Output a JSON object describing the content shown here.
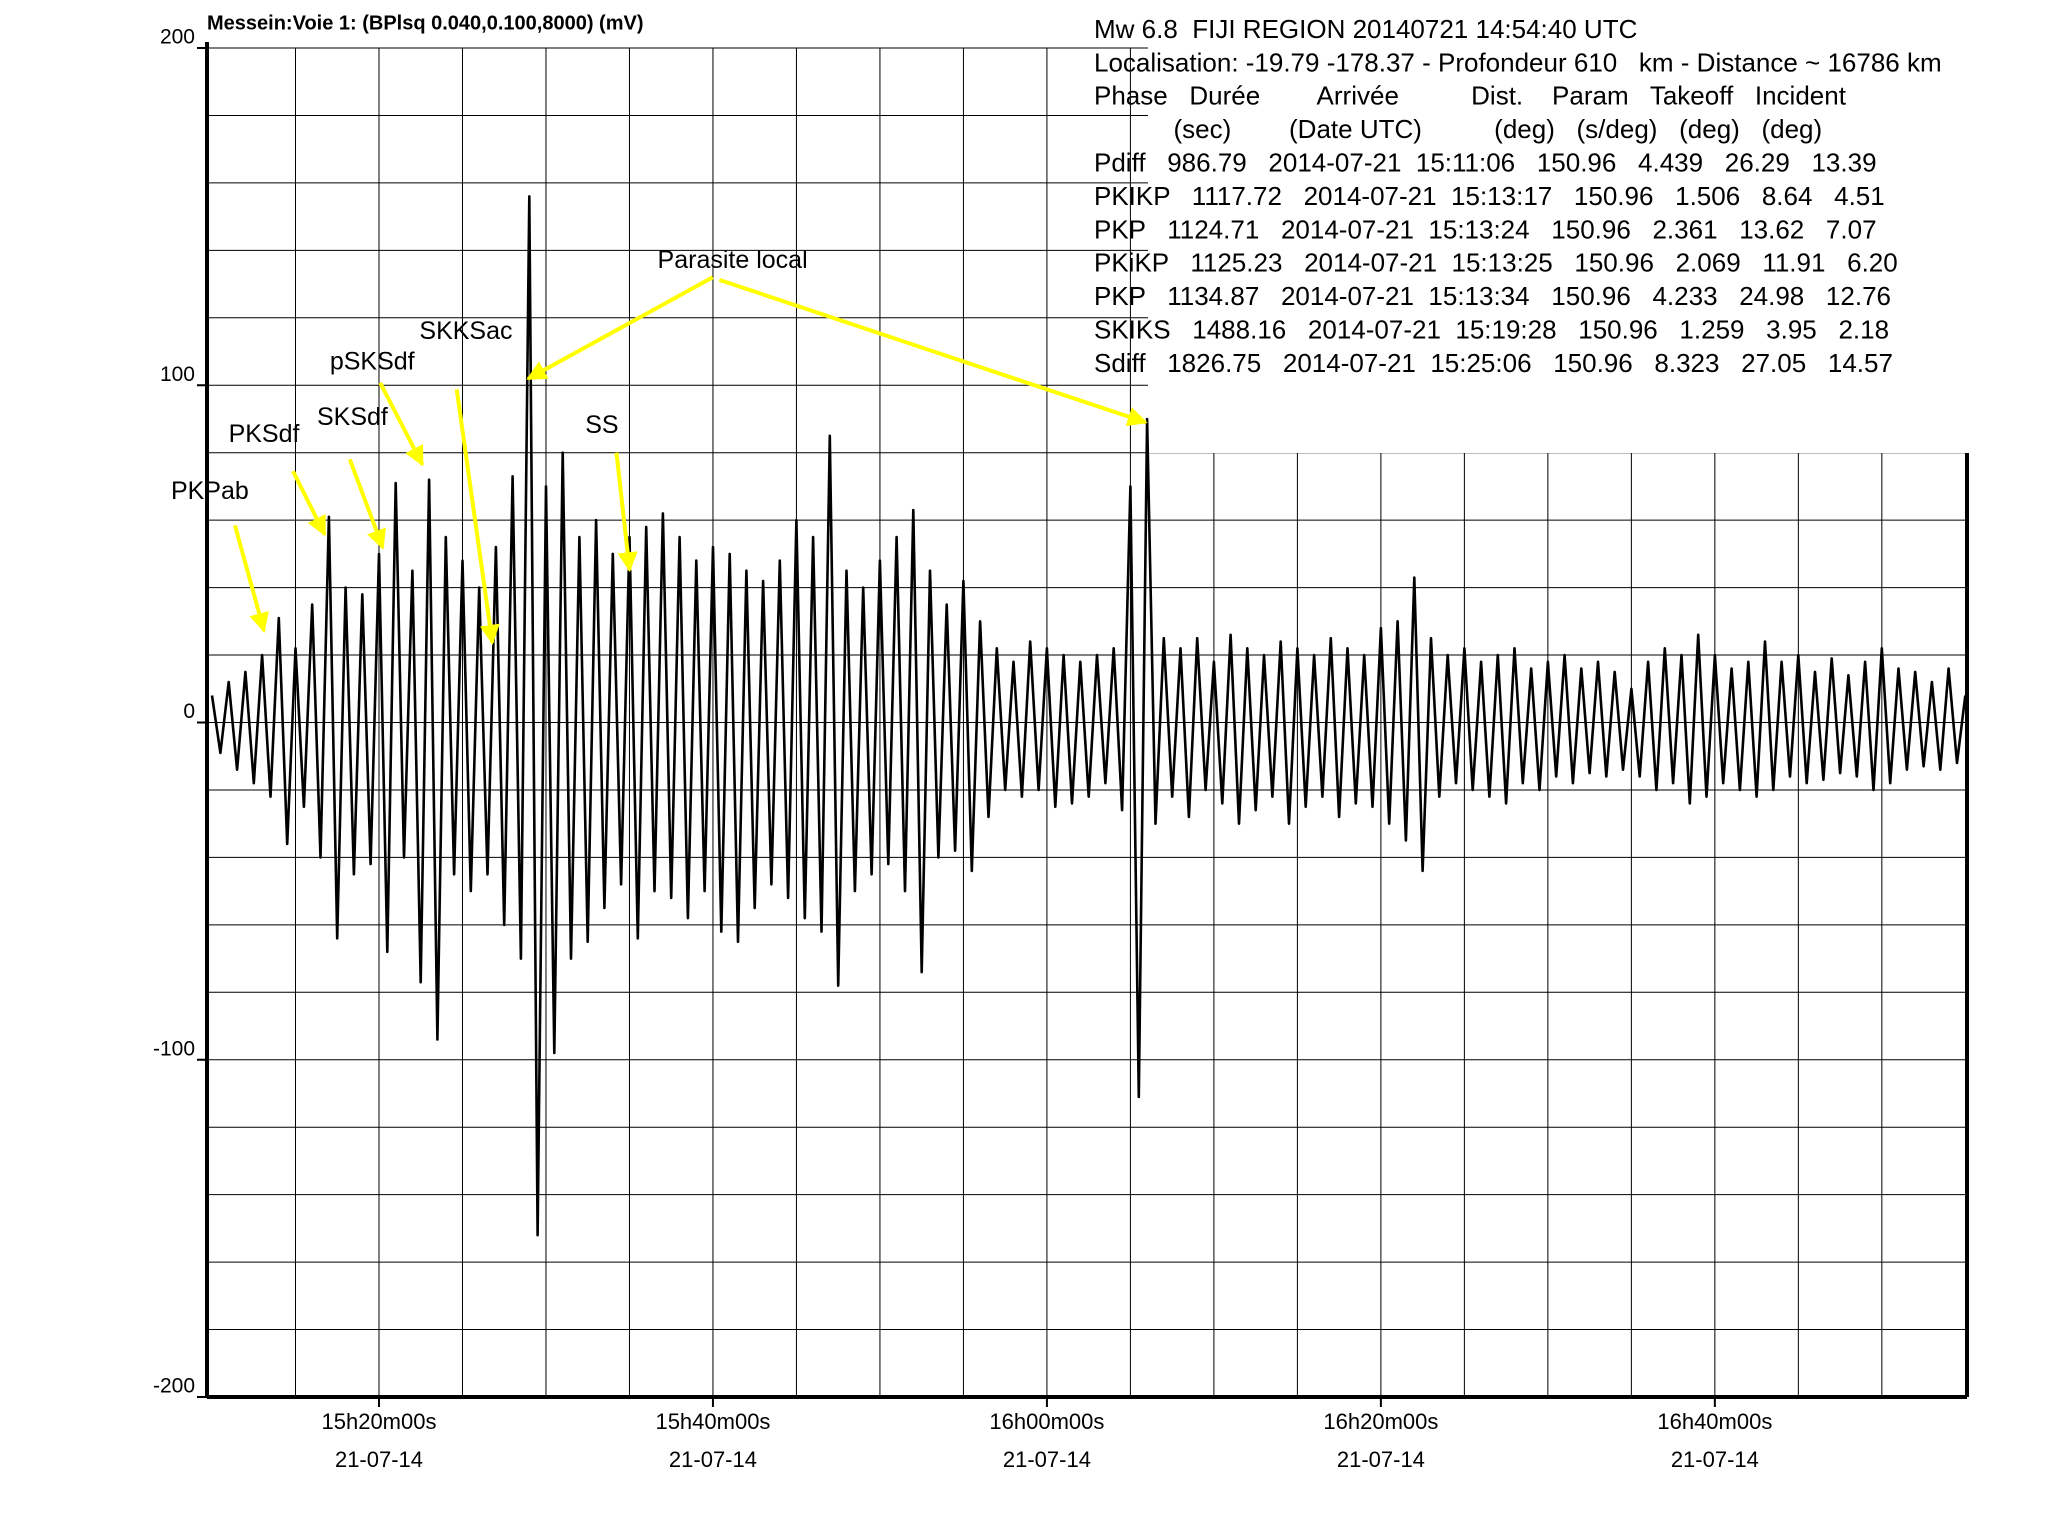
{
  "chart_data": {
    "type": "line",
    "title": "Messein:Voie 1: (BPlsq 0.040,0.100,8000) (mV)",
    "info": [
      "Mw 6.8  FIJI REGION 20140721 14:54:40 UTC",
      "Localisation: -19.79 -178.37 - Profondeur 610   km - Distance ~ 16786 km",
      "Phase   Durée        Arrivée          Dist.    Param   Takeoff   Incident",
      "           (sec)        (Date UTC)          (deg)   (s/deg)   (deg)   (deg)",
      "Pdiff   986.79   2014-07-21  15:11:06   150.96   4.439   26.29   13.39",
      "PKIKP   1117.72   2014-07-21  15:13:17   150.96   1.506   8.64   4.51",
      "PKP   1124.71   2014-07-21  15:13:24   150.96   2.361   13.62   7.07",
      "PKiKP   1125.23   2014-07-21  15:13:25   150.96   2.069   11.91   6.20",
      "PKP   1134.87   2014-07-21  15:13:34   150.96   4.233   24.98   12.76",
      "SKIKS   1488.16   2014-07-21  15:19:28   150.96   1.259   3.95   2.18",
      "Sdiff   1826.75   2014-07-21  15:25:06   150.96   8.323   27.05   14.57"
    ],
    "annotations": [
      "PKPab",
      "PKSdf",
      "SKSdf",
      "pSKSdf",
      "SKKSac",
      "SS",
      "Parasite local"
    ],
    "color": "#000000",
    "annotation_color": "#ffff00",
    "grid": true,
    "xlim": [
      9.7,
      115.1
    ],
    "xticks": [
      {
        "value": 20,
        "label": "15h20m00s",
        "date": "21-07-14"
      },
      {
        "value": 40,
        "label": "15h40m00s",
        "date": "21-07-14"
      },
      {
        "value": 60,
        "label": "16h00m00s",
        "date": "21-07-14"
      },
      {
        "value": 80,
        "label": "16h20m00s",
        "date": "21-07-14"
      },
      {
        "value": 100,
        "label": "16h40m00s",
        "date": "21-07-14"
      }
    ],
    "xgrid": [
      15,
      25,
      30,
      35,
      45,
      50,
      55,
      65,
      70,
      75,
      85,
      90,
      95,
      105,
      110
    ],
    "ylim": [
      -200,
      200
    ],
    "yticks": [
      -200,
      -100,
      0,
      100,
      200
    ],
    "ygrid": [
      -180,
      -160,
      -140,
      -120,
      -80,
      -60,
      -40,
      -20,
      20,
      40,
      60,
      80,
      120,
      140,
      160,
      180
    ],
    "x": [
      10,
      10.5,
      11,
      11.5,
      12,
      12.5,
      13,
      13.5,
      14,
      14.5,
      15,
      15.5,
      16,
      16.5,
      17,
      17.5,
      18,
      18.5,
      19,
      19.5,
      20,
      20.5,
      21,
      21.5,
      22,
      22.5,
      23,
      23.5,
      24,
      24.5,
      25,
      25.5,
      26,
      26.5,
      27,
      27.5,
      28,
      28.5,
      29,
      29.5,
      30,
      30.5,
      31,
      31.5,
      32,
      32.5,
      33,
      33.5,
      34,
      34.5,
      35,
      35.5,
      36,
      36.5,
      37,
      37.5,
      38,
      38.5,
      39,
      39.5,
      40,
      40.5,
      41,
      41.5,
      42,
      42.5,
      43,
      43.5,
      44,
      44.5,
      45,
      45.5,
      46,
      46.5,
      47,
      47.5,
      48,
      48.5,
      49,
      49.5,
      50,
      50.5,
      51,
      51.5,
      52,
      52.5,
      53,
      53.5,
      54,
      54.5,
      55,
      55.5,
      56,
      56.5,
      57,
      57.5,
      58,
      58.5,
      59,
      59.5,
      60,
      60.5,
      61,
      61.5,
      62,
      62.5,
      63,
      63.5,
      64,
      64.5,
      65,
      65.5,
      66,
      66.5,
      67,
      67.5,
      68,
      68.5,
      69,
      69.5,
      70,
      70.5,
      71,
      71.5,
      72,
      72.5,
      73,
      73.5,
      74,
      74.5,
      75,
      75.5,
      76,
      76.5,
      77,
      77.5,
      78,
      78.5,
      79,
      79.5,
      80,
      80.5,
      81,
      81.5,
      82,
      82.5,
      83,
      83.5,
      84,
      84.5,
      85,
      85.5,
      86,
      86.5,
      87,
      87.5,
      88,
      88.5,
      89,
      89.5,
      90,
      90.5,
      91,
      91.5,
      92,
      92.5,
      93,
      93.5,
      94,
      94.5,
      95,
      95.5,
      96,
      96.5,
      97,
      97.5,
      98,
      98.5,
      99,
      99.5,
      100,
      100.5,
      101,
      101.5,
      102,
      102.5,
      103,
      103.5,
      104,
      104.5,
      105,
      105.5,
      106,
      106.5,
      107,
      107.5,
      108,
      108.5,
      109,
      109.5,
      110,
      110.5,
      111,
      111.5,
      112,
      112.5,
      113,
      113.5,
      114,
      114.5,
      115
    ],
    "values": [
      8,
      -9,
      12,
      -14,
      15,
      -18,
      20,
      -22,
      31,
      -36,
      22,
      -25,
      35,
      -40,
      61,
      -64,
      40,
      -45,
      38,
      -42,
      50,
      -68,
      71,
      -40,
      45,
      -77,
      72,
      -94,
      55,
      -45,
      48,
      -50,
      40,
      -45,
      52,
      -60,
      73,
      -70,
      156,
      -152,
      70,
      -98,
      80,
      -70,
      55,
      -65,
      60,
      -55,
      50,
      -48,
      55,
      -64,
      58,
      -50,
      62,
      -52,
      55,
      -58,
      48,
      -50,
      52,
      -62,
      50,
      -65,
      45,
      -55,
      42,
      -48,
      48,
      -52,
      60,
      -58,
      55,
      -62,
      85,
      -78,
      45,
      -50,
      40,
      -45,
      48,
      -42,
      55,
      -50,
      63,
      -74,
      45,
      -40,
      35,
      -38,
      42,
      -44,
      30,
      -28,
      22,
      -20,
      18,
      -22,
      24,
      -20,
      22,
      -25,
      20,
      -24,
      18,
      -22,
      20,
      -18,
      22,
      -26,
      70,
      -111,
      90,
      -30,
      25,
      -22,
      22,
      -28,
      25,
      -20,
      18,
      -24,
      26,
      -30,
      22,
      -26,
      20,
      -22,
      24,
      -30,
      22,
      -25,
      20,
      -22,
      25,
      -28,
      22,
      -24,
      20,
      -25,
      28,
      -30,
      30,
      -35,
      43,
      -44,
      25,
      -22,
      20,
      -18,
      22,
      -20,
      18,
      -22,
      20,
      -24,
      22,
      -18,
      16,
      -20,
      18,
      -16,
      20,
      -18,
      16,
      -15,
      18,
      -16,
      15,
      -14,
      10,
      -16,
      18,
      -20,
      22,
      -18,
      20,
      -24,
      26,
      -22,
      20,
      -18,
      16,
      -20,
      18,
      -22,
      24,
      -20,
      18,
      -16,
      20,
      -18,
      15,
      -17,
      19,
      -15,
      14,
      -16,
      18,
      -20,
      22,
      -18,
      16,
      -14,
      15,
      -13,
      12,
      -14,
      16,
      -12,
      8
    ]
  }
}
